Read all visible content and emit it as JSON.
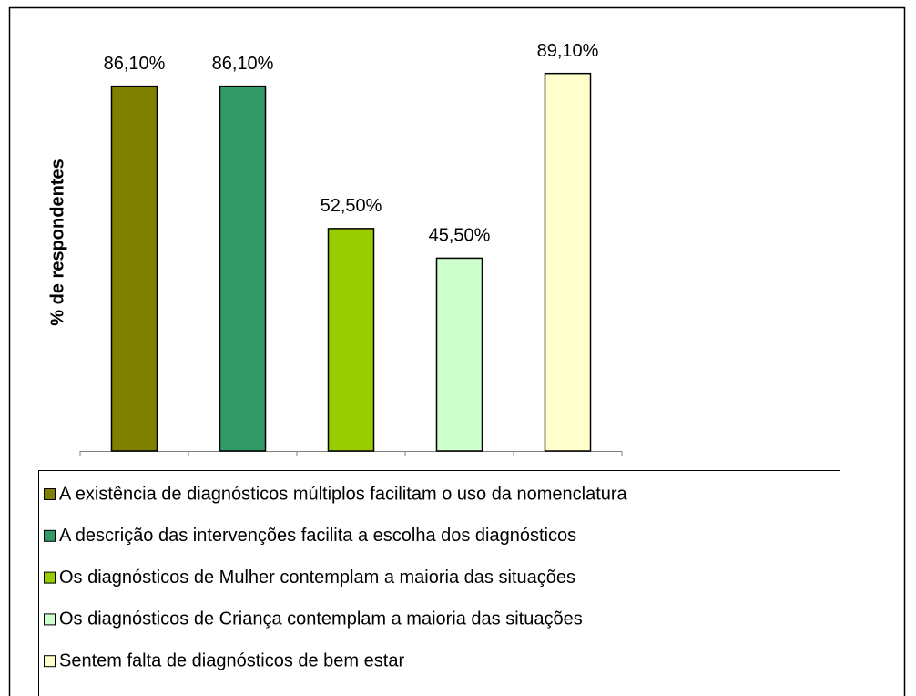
{
  "chart_data": {
    "type": "bar",
    "y_label": "% de respondentes",
    "categories": [
      "A existência de diagnósticos múltiplos facilitam o uso da nomenclatura",
      "A descrição das intervenções facilita a escolha dos diagnósticos",
      "Os diagnósticos de Mulher contemplam a maioria das situações",
      "Os diagnósticos de Criança contemplam a maioria das situações",
      "Sentem falta de diagnósticos de bem estar"
    ],
    "values": [
      86.1,
      86.1,
      52.5,
      45.5,
      89.1
    ],
    "value_labels": [
      "86,10%",
      "86,10%",
      "52,50%",
      "45,50%",
      "89,10%"
    ],
    "colors": [
      "#808000",
      "#339966",
      "#99cc00",
      "#ccffcc",
      "#ffffcc"
    ],
    "ylim": [
      0,
      100
    ],
    "legend": "bottom"
  }
}
